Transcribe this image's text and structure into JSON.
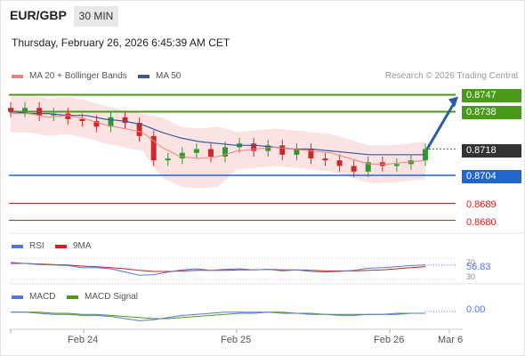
{
  "header": {
    "pair": "EUR/GBP",
    "timeframe": "30 MIN",
    "datetime": "Thursday, February 26, 2026 6:45:39 AM CET"
  },
  "legend": {
    "bollinger": {
      "label": "MA 20 + Bollinger Bands",
      "color": "#f08080"
    },
    "ma50": {
      "label": "MA 50",
      "color": "#3a5a9a"
    },
    "credit": "Research © 2026 Trading Central"
  },
  "levels": {
    "r2": {
      "label": "0.8747",
      "value": 0.8747,
      "color": "#4a9a1a"
    },
    "r1": {
      "label": "0.8738",
      "value": 0.8738,
      "color": "#4a9a1a"
    },
    "last": {
      "label": "0.8718",
      "value": 0.8718,
      "color": "#333333"
    },
    "s1": {
      "label": "0.8704",
      "value": 0.8704,
      "color": "#2266cc"
    },
    "s2": {
      "label": "0.8689",
      "value": 0.8689,
      "color": "#cc2222"
    },
    "s3": {
      "label": "0.8680",
      "value": 0.868,
      "color": "#cc2222"
    }
  },
  "rsi": {
    "label": "RSI",
    "color": "#5577dd",
    "ma_label": "9MA",
    "ma_color": "#cc2222",
    "value_label": "56.83",
    "ref_top": "70",
    "ref_bottom": "30"
  },
  "macd": {
    "label": "MACD",
    "color": "#5577dd",
    "signal_label": "MACD Signal",
    "signal_color": "#4a9a1a",
    "value_label": "0.00"
  },
  "xaxis": [
    "Feb 24",
    "Feb 25",
    "Feb 26",
    "Mar 6"
  ],
  "chart_data": {
    "type": "candlestick",
    "ylim": [
      0.8675,
      0.8752
    ],
    "series": [
      {
        "name": "MA 20 + Bollinger Bands",
        "values": [
          0.8737,
          0.8737,
          0.8735,
          0.8736,
          0.8734,
          0.8731,
          0.8729,
          0.8727,
          0.8719,
          0.8714,
          0.8713,
          0.8714,
          0.8717,
          0.8718,
          0.8719,
          0.8718,
          0.8717,
          0.8716,
          0.8713,
          0.871,
          0.871,
          0.8711,
          0.8712
        ]
      },
      {
        "name": "MA 50",
        "values": [
          0.8738,
          0.8737,
          0.8737,
          0.8736,
          0.8736,
          0.8734,
          0.8733,
          0.8731,
          0.8727,
          0.8724,
          0.8722,
          0.8721,
          0.872,
          0.872,
          0.8719,
          0.8718,
          0.8718,
          0.8717,
          0.8716,
          0.8715,
          0.8715,
          0.8715,
          0.8715
        ]
      }
    ],
    "close": [
      0.8738,
      0.874,
      0.8736,
      0.8737,
      0.8734,
      0.8733,
      0.873,
      0.8735,
      0.8732,
      0.8725,
      0.8712,
      0.8713,
      0.8716,
      0.8718,
      0.8714,
      0.8719,
      0.8721,
      0.8717,
      0.872,
      0.8715,
      0.8718,
      0.8713,
      0.8712,
      0.8709,
      0.8706,
      0.8711,
      0.8709,
      0.871,
      0.8712,
      0.8718
    ],
    "rsi": [
      62,
      60,
      58,
      57,
      56,
      52,
      52,
      50,
      44,
      38,
      39,
      44,
      48,
      50,
      47,
      49,
      50,
      48,
      49,
      46,
      48,
      45,
      44,
      45,
      47,
      51,
      52,
      54,
      56,
      57
    ],
    "rsi_ma": [
      60,
      60,
      59,
      58,
      57,
      55,
      54,
      52,
      50,
      47,
      45,
      45,
      46,
      47,
      47,
      47,
      48,
      48,
      49,
      48,
      48,
      47,
      46,
      46,
      46,
      47,
      48,
      50,
      52,
      54
    ],
    "macd": [
      0.0001,
      0.0001,
      0.0,
      -0.0001,
      -0.0001,
      -0.0002,
      -0.0002,
      -0.0003,
      -0.0005,
      -0.0007,
      -0.0006,
      -0.0004,
      -0.0002,
      -0.0001,
      0.0,
      0.0001,
      0.0001,
      0.0001,
      0.0001,
      0.0,
      0.0,
      -0.0001,
      -0.0001,
      -0.0002,
      -0.0002,
      -0.0001,
      -0.0001,
      0.0,
      0.0,
      0.0
    ],
    "macd_signal": [
      0.0001,
      0.0001,
      0.0001,
      0.0,
      0.0,
      -0.0001,
      -0.0001,
      -0.0002,
      -0.0003,
      -0.0004,
      -0.0005,
      -0.0005,
      -0.0004,
      -0.0003,
      -0.0002,
      -0.0001,
      0.0,
      0.0,
      0.0001,
      0.0001,
      0.0,
      0.0,
      -0.0001,
      -0.0001,
      -0.0001,
      -0.0001,
      -0.0001,
      -0.0001,
      0.0,
      0.0
    ]
  }
}
